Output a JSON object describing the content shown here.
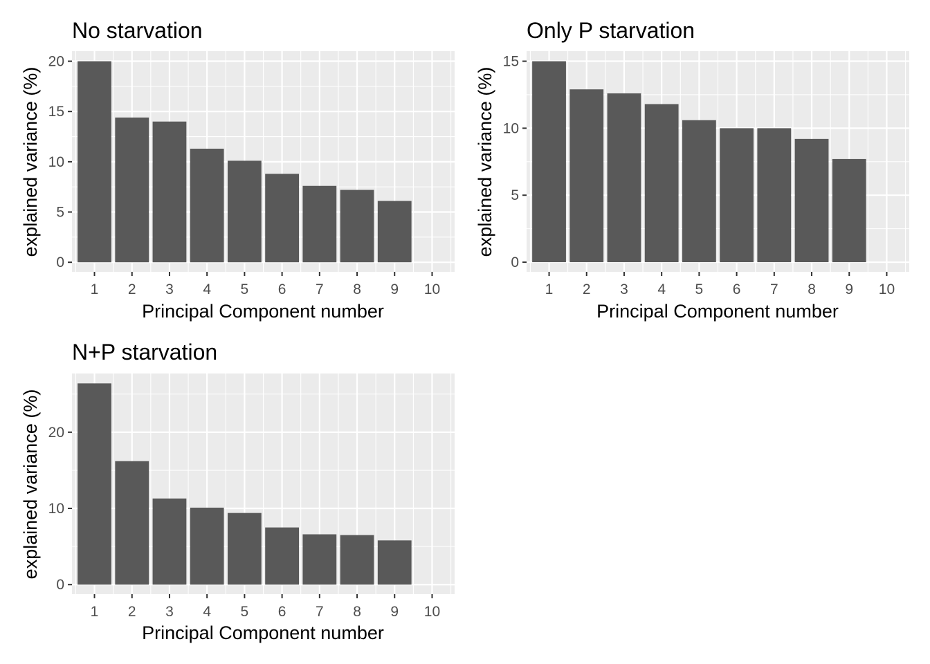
{
  "chart_data": [
    {
      "type": "bar",
      "title": "No starvation",
      "xlabel": "Principal Component number",
      "ylabel": "explained variance (%)",
      "categories": [
        "1",
        "2",
        "3",
        "4",
        "5",
        "6",
        "7",
        "8",
        "9",
        "10"
      ],
      "values": [
        20.0,
        14.4,
        14.0,
        11.3,
        10.1,
        8.8,
        7.6,
        7.2,
        6.1,
        null
      ],
      "yticks": [
        0,
        5,
        10,
        15,
        20
      ],
      "ylim": [
        -0.95,
        21.0
      ],
      "grid": true,
      "legend": "none",
      "bar_color": "#595959"
    },
    {
      "type": "bar",
      "title": "Only P starvation",
      "xlabel": "Principal Component number",
      "ylabel": "explained variance (%)",
      "categories": [
        "1",
        "2",
        "3",
        "4",
        "5",
        "6",
        "7",
        "8",
        "9",
        "10"
      ],
      "values": [
        15.0,
        12.9,
        12.6,
        11.8,
        10.6,
        10.0,
        10.0,
        9.2,
        7.7,
        null
      ],
      "yticks": [
        0,
        5,
        10,
        15
      ],
      "ylim": [
        -0.72,
        15.75
      ],
      "grid": true,
      "legend": "none",
      "bar_color": "#595959"
    },
    {
      "type": "bar",
      "title": "N+P starvation",
      "xlabel": "Principal Component number",
      "ylabel": "explained variance (%)",
      "categories": [
        "1",
        "2",
        "3",
        "4",
        "5",
        "6",
        "7",
        "8",
        "9",
        "10"
      ],
      "values": [
        26.4,
        16.2,
        11.3,
        10.1,
        9.4,
        7.5,
        6.6,
        6.5,
        5.8,
        null
      ],
      "yticks": [
        0,
        10,
        20
      ],
      "ylim": [
        -1.25,
        27.7
      ],
      "grid": true,
      "legend": "none",
      "bar_color": "#595959"
    }
  ]
}
